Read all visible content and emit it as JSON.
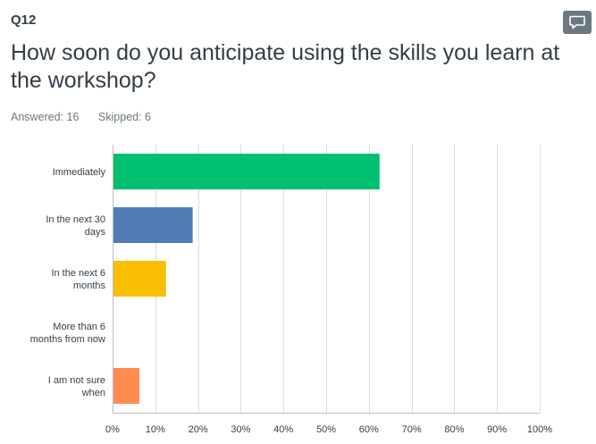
{
  "question": {
    "number": "Q12",
    "title": "How soon do you anticipate using the skills you learn at the workshop?",
    "answered_label": "Answered: 16",
    "skipped_label": "Skipped: 6"
  },
  "icons": {
    "comment": "comment-icon"
  },
  "chart_data": {
    "type": "bar",
    "orientation": "horizontal",
    "categories": [
      [
        "Immediately"
      ],
      [
        "In the next 30",
        "days"
      ],
      [
        "In the next 6",
        "months"
      ],
      [
        "More than 6",
        "months from now"
      ],
      [
        "I am not sure",
        "when"
      ]
    ],
    "values": [
      62.5,
      18.75,
      12.5,
      0,
      6.25
    ],
    "colors": [
      "#00bf6f",
      "#507cb6",
      "#f9be00",
      "#6bc8cd",
      "#ff8b4f"
    ],
    "xlim": [
      0,
      100
    ],
    "xticks": [
      "0%",
      "10%",
      "20%",
      "30%",
      "40%",
      "50%",
      "60%",
      "70%",
      "80%",
      "90%",
      "100%"
    ],
    "grid": true
  }
}
